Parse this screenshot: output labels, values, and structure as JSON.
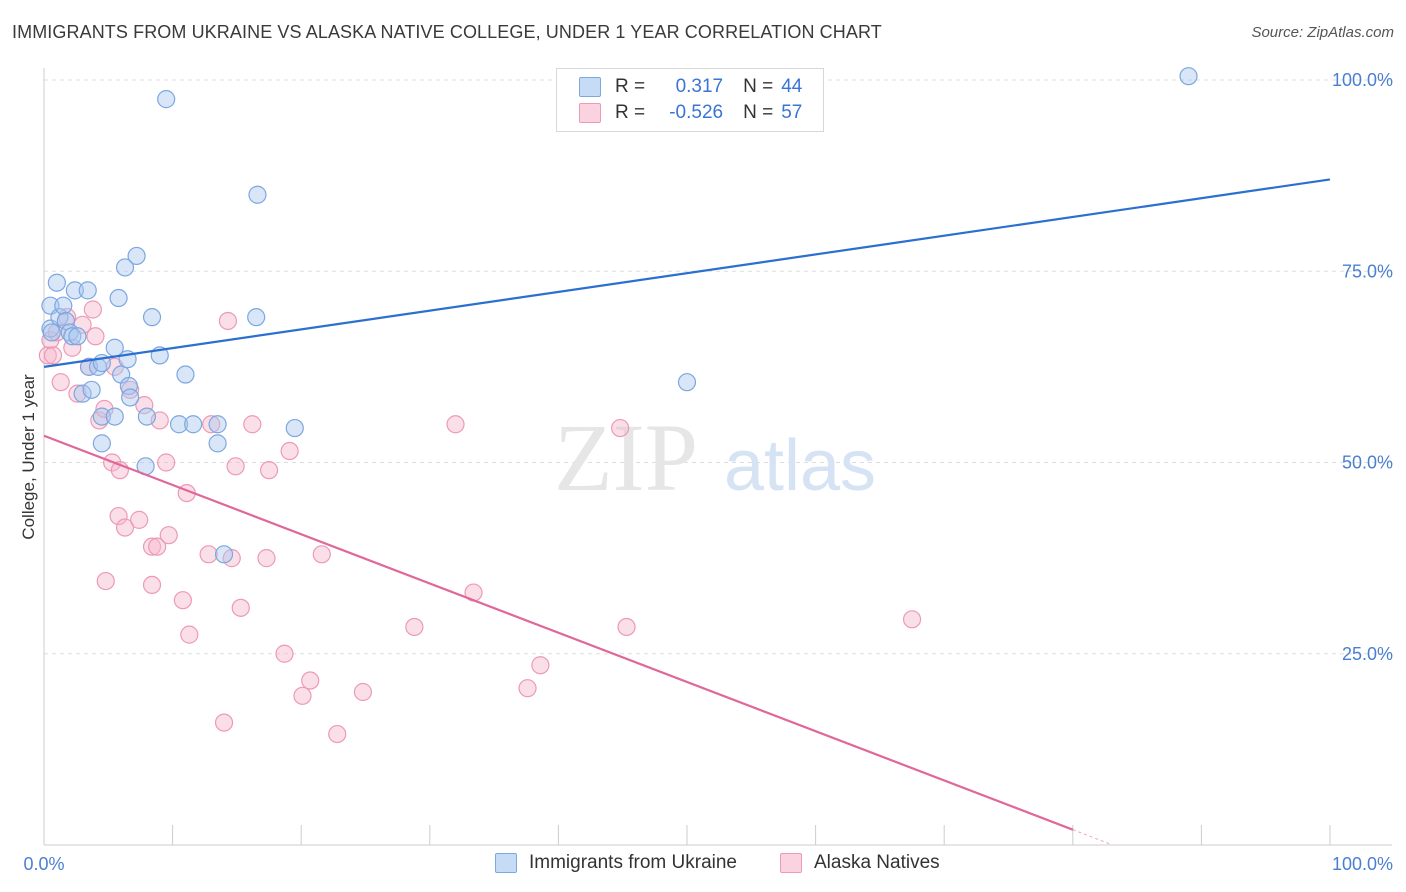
{
  "header": {
    "title": "IMMIGRANTS FROM UKRAINE VS ALASKA NATIVE COLLEGE, UNDER 1 YEAR CORRELATION CHART",
    "source": "Source: ZipAtlas.com"
  },
  "watermark": {
    "zip": "ZIP",
    "atlas": "atlas"
  },
  "legend": {
    "rows": [
      {
        "r_label": "R =",
        "r_value": "0.317",
        "n_label": "N =",
        "n_value": "44",
        "color": "#a8c8f0"
      },
      {
        "r_label": "R =",
        "r_value": "-0.526",
        "n_label": "N =",
        "n_value": "57",
        "color": "#f7b7cc"
      }
    ]
  },
  "bottom_legend": {
    "series1": "Immigrants from Ukraine",
    "series2": "Alaska Natives"
  },
  "colors": {
    "blue_fill": "#a8c8f0",
    "blue_stroke": "#7da7e0",
    "blue_line": "#2b6fd0",
    "pink_fill": "#f7b7cc",
    "pink_stroke": "#ec9ab6",
    "pink_line": "#e0679a",
    "grid": "#dddddd",
    "tick_text": "#4a7fd0"
  },
  "chart_data": {
    "type": "scatter",
    "title": "IMMIGRANTS FROM UKRAINE VS ALASKA NATIVE COLLEGE, UNDER 1 YEAR CORRELATION CHART",
    "xlabel": "",
    "ylabel": "College, Under 1 year",
    "xlim": [
      0,
      100
    ],
    "ylim": [
      0,
      100
    ],
    "x_tick_labels": [
      "0.0%",
      "100.0%"
    ],
    "y_ticks": [
      25,
      50,
      75,
      100
    ],
    "y_tick_labels": [
      "25.0%",
      "50.0%",
      "75.0%",
      "100.0%"
    ],
    "series": [
      {
        "name": "Immigrants from Ukraine",
        "r": 0.317,
        "n": 44,
        "trend": {
          "x": [
            0,
            100
          ],
          "y": [
            62.5,
            87.0
          ]
        },
        "points": [
          {
            "x": 0.5,
            "y": 70.5
          },
          {
            "x": 0.5,
            "y": 67.5
          },
          {
            "x": 0.6,
            "y": 67
          },
          {
            "x": 1.0,
            "y": 73.5
          },
          {
            "x": 1.2,
            "y": 69
          },
          {
            "x": 1.5,
            "y": 70.5
          },
          {
            "x": 1.7,
            "y": 68.5
          },
          {
            "x": 2.0,
            "y": 67
          },
          {
            "x": 2.2,
            "y": 66.5
          },
          {
            "x": 2.4,
            "y": 72.5
          },
          {
            "x": 2.6,
            "y": 66.5
          },
          {
            "x": 3.0,
            "y": 59
          },
          {
            "x": 3.4,
            "y": 72.5
          },
          {
            "x": 3.5,
            "y": 62.5
          },
          {
            "x": 3.7,
            "y": 59.5
          },
          {
            "x": 4.2,
            "y": 62.5
          },
          {
            "x": 4.5,
            "y": 63
          },
          {
            "x": 4.5,
            "y": 56
          },
          {
            "x": 4.5,
            "y": 52.5
          },
          {
            "x": 5.5,
            "y": 56
          },
          {
            "x": 5.5,
            "y": 65
          },
          {
            "x": 5.8,
            "y": 71.5
          },
          {
            "x": 6.0,
            "y": 61.5
          },
          {
            "x": 6.3,
            "y": 75.5
          },
          {
            "x": 6.5,
            "y": 63.5
          },
          {
            "x": 6.6,
            "y": 60
          },
          {
            "x": 6.7,
            "y": 58.5
          },
          {
            "x": 7.2,
            "y": 77
          },
          {
            "x": 7.9,
            "y": 49.5
          },
          {
            "x": 8.0,
            "y": 56
          },
          {
            "x": 8.4,
            "y": 69
          },
          {
            "x": 9.0,
            "y": 64
          },
          {
            "x": 9.5,
            "y": 97.5
          },
          {
            "x": 10.5,
            "y": 55
          },
          {
            "x": 11.0,
            "y": 61.5
          },
          {
            "x": 11.6,
            "y": 55
          },
          {
            "x": 13.5,
            "y": 55
          },
          {
            "x": 13.5,
            "y": 52.5
          },
          {
            "x": 14.0,
            "y": 38
          },
          {
            "x": 16.5,
            "y": 69
          },
          {
            "x": 16.6,
            "y": 85
          },
          {
            "x": 19.5,
            "y": 54.5
          },
          {
            "x": 50.0,
            "y": 60.5
          },
          {
            "x": 89.0,
            "y": 100.5
          }
        ]
      },
      {
        "name": "Alaska Natives",
        "r": -0.526,
        "n": 57,
        "trend": {
          "x": [
            0,
            80
          ],
          "y": [
            53.5,
            2.0
          ]
        },
        "points": [
          {
            "x": 0.3,
            "y": 64
          },
          {
            "x": 0.5,
            "y": 66
          },
          {
            "x": 0.7,
            "y": 64
          },
          {
            "x": 1.0,
            "y": 67
          },
          {
            "x": 1.3,
            "y": 60.5
          },
          {
            "x": 1.8,
            "y": 69
          },
          {
            "x": 2.2,
            "y": 65
          },
          {
            "x": 2.6,
            "y": 59
          },
          {
            "x": 3.0,
            "y": 68
          },
          {
            "x": 3.5,
            "y": 62.5
          },
          {
            "x": 3.8,
            "y": 70
          },
          {
            "x": 4.0,
            "y": 66.5
          },
          {
            "x": 4.3,
            "y": 55.5
          },
          {
            "x": 4.7,
            "y": 57
          },
          {
            "x": 4.8,
            "y": 34.5
          },
          {
            "x": 5.3,
            "y": 50
          },
          {
            "x": 5.5,
            "y": 62.5
          },
          {
            "x": 5.8,
            "y": 43
          },
          {
            "x": 5.9,
            "y": 49
          },
          {
            "x": 6.3,
            "y": 41.5
          },
          {
            "x": 6.7,
            "y": 59.5
          },
          {
            "x": 7.4,
            "y": 42.5
          },
          {
            "x": 7.8,
            "y": 57.5
          },
          {
            "x": 8.4,
            "y": 34
          },
          {
            "x": 8.4,
            "y": 39
          },
          {
            "x": 8.8,
            "y": 39
          },
          {
            "x": 9.0,
            "y": 55.5
          },
          {
            "x": 9.5,
            "y": 50
          },
          {
            "x": 9.7,
            "y": 40.5
          },
          {
            "x": 10.8,
            "y": 32
          },
          {
            "x": 11.1,
            "y": 46
          },
          {
            "x": 11.3,
            "y": 27.5
          },
          {
            "x": 12.8,
            "y": 38
          },
          {
            "x": 13.0,
            "y": 55
          },
          {
            "x": 14.0,
            "y": 16
          },
          {
            "x": 14.3,
            "y": 68.5
          },
          {
            "x": 14.6,
            "y": 37.5
          },
          {
            "x": 14.9,
            "y": 49.5
          },
          {
            "x": 15.3,
            "y": 31
          },
          {
            "x": 16.2,
            "y": 55
          },
          {
            "x": 17.3,
            "y": 37.5
          },
          {
            "x": 17.5,
            "y": 49
          },
          {
            "x": 18.7,
            "y": 25
          },
          {
            "x": 19.1,
            "y": 51.5
          },
          {
            "x": 20.1,
            "y": 19.5
          },
          {
            "x": 20.7,
            "y": 21.5
          },
          {
            "x": 21.6,
            "y": 38
          },
          {
            "x": 22.8,
            "y": 14.5
          },
          {
            "x": 24.8,
            "y": 20
          },
          {
            "x": 28.8,
            "y": 28.5
          },
          {
            "x": 32.0,
            "y": 55
          },
          {
            "x": 33.4,
            "y": 33
          },
          {
            "x": 37.6,
            "y": 20.5
          },
          {
            "x": 38.6,
            "y": 23.5
          },
          {
            "x": 44.8,
            "y": 54.5
          },
          {
            "x": 45.3,
            "y": 28.5
          },
          {
            "x": 67.5,
            "y": 29.5
          }
        ]
      }
    ]
  }
}
